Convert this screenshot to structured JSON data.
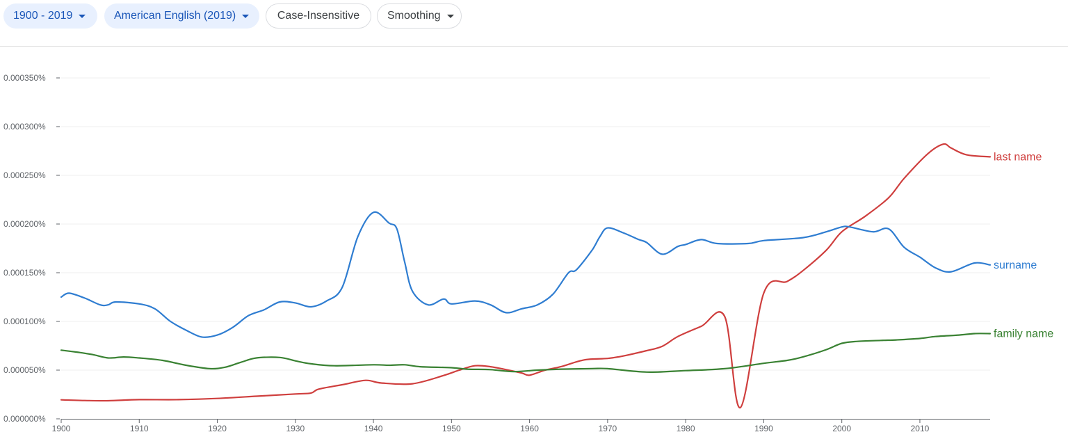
{
  "toolbar": {
    "date_range": "1900 - 2019",
    "corpus": "American English (2019)",
    "case": "Case-Insensitive",
    "smoothing": "Smoothing"
  },
  "chart_data": {
    "type": "line",
    "x_range": [
      1900,
      2019
    ],
    "ylim": [
      0,
      0.00035
    ],
    "y_ticks": [
      0.0,
      5e-05,
      0.0001,
      0.00015,
      0.0002,
      0.00025,
      0.0003,
      0.00035
    ],
    "y_tick_labels": [
      "0.000000%",
      "0.000050%",
      "0.000100%",
      "0.000150%",
      "0.000200%",
      "0.000250%",
      "0.000300%",
      "0.000350%"
    ],
    "x_ticks": [
      1900,
      1910,
      1920,
      1930,
      1940,
      1950,
      1960,
      1970,
      1980,
      1990,
      2000,
      2010
    ],
    "grid": "horizontal",
    "legend": "inline-right",
    "series": [
      {
        "name": "last name",
        "color": "#cf3f3e",
        "points": [
          [
            1900,
            1.95e-05
          ],
          [
            1903,
            1.88e-05
          ],
          [
            1906,
            1.86e-05
          ],
          [
            1910,
            1.97e-05
          ],
          [
            1915,
            1.97e-05
          ],
          [
            1920,
            2.09e-05
          ],
          [
            1925,
            2.32e-05
          ],
          [
            1930,
            2.55e-05
          ],
          [
            1932,
            2.65e-05
          ],
          [
            1933,
            3.05e-05
          ],
          [
            1936,
            3.5e-05
          ],
          [
            1939,
            3.95e-05
          ],
          [
            1941,
            3.68e-05
          ],
          [
            1945,
            3.6e-05
          ],
          [
            1949,
            4.45e-05
          ],
          [
            1951,
            5e-05
          ],
          [
            1953,
            5.45e-05
          ],
          [
            1955,
            5.35e-05
          ],
          [
            1957,
            5.05e-05
          ],
          [
            1959,
            4.7e-05
          ],
          [
            1960,
            4.48e-05
          ],
          [
            1962,
            5e-05
          ],
          [
            1964,
            5.35e-05
          ],
          [
            1967,
            6.05e-05
          ],
          [
            1970,
            6.2e-05
          ],
          [
            1972,
            6.45e-05
          ],
          [
            1975,
            7e-05
          ],
          [
            1977,
            7.45e-05
          ],
          [
            1979,
            8.45e-05
          ],
          [
            1982,
            9.5e-05
          ],
          [
            1985,
            0.000105
          ],
          [
            1987,
            1.15e-05
          ],
          [
            1990,
            0.000129
          ],
          [
            1993,
            0.000141
          ],
          [
            1995,
            0.000152
          ],
          [
            1998,
            0.000173
          ],
          [
            2000,
            0.000192
          ],
          [
            2003,
            0.000208
          ],
          [
            2006,
            0.000227
          ],
          [
            2008,
            0.000247
          ],
          [
            2011,
            0.000272
          ],
          [
            2013,
            0.000282
          ],
          [
            2014,
            0.000278
          ],
          [
            2016,
            0.000271
          ],
          [
            2019,
            0.000269
          ]
        ]
      },
      {
        "name": "surname",
        "color": "#2f7dd1",
        "points": [
          [
            1900,
            0.000125
          ],
          [
            1901,
            0.000129
          ],
          [
            1903,
            0.000124
          ],
          [
            1905,
            0.000117
          ],
          [
            1906,
            0.000117
          ],
          [
            1907,
            0.00012
          ],
          [
            1910,
            0.000118
          ],
          [
            1912,
            0.000113
          ],
          [
            1914,
            0.0001
          ],
          [
            1916,
            9.1e-05
          ],
          [
            1918,
            8.4e-05
          ],
          [
            1920,
            8.6e-05
          ],
          [
            1922,
            9.4e-05
          ],
          [
            1924,
            0.000106
          ],
          [
            1926,
            0.000112
          ],
          [
            1928,
            0.00012
          ],
          [
            1930,
            0.000119
          ],
          [
            1932,
            0.000115
          ],
          [
            1934,
            0.000121
          ],
          [
            1936,
            0.000135
          ],
          [
            1938,
            0.000187
          ],
          [
            1940,
            0.000212
          ],
          [
            1942,
            0.000201
          ],
          [
            1943,
            0.000195
          ],
          [
            1944,
            0.000161
          ],
          [
            1945,
            0.000131
          ],
          [
            1947,
            0.000117
          ],
          [
            1949,
            0.000123
          ],
          [
            1950,
            0.000118
          ],
          [
            1953,
            0.000121
          ],
          [
            1955,
            0.000117
          ],
          [
            1957,
            0.000109
          ],
          [
            1959,
            0.000113
          ],
          [
            1961,
            0.000117
          ],
          [
            1963,
            0.000128
          ],
          [
            1965,
            0.00015
          ],
          [
            1966,
            0.000153
          ],
          [
            1968,
            0.000173
          ],
          [
            1969,
            0.000187
          ],
          [
            1970,
            0.000196
          ],
          [
            1972,
            0.000191
          ],
          [
            1974,
            0.000184
          ],
          [
            1975,
            0.000181
          ],
          [
            1977,
            0.000169
          ],
          [
            1979,
            0.000177
          ],
          [
            1980,
            0.000179
          ],
          [
            1982,
            0.000184
          ],
          [
            1984,
            0.00018
          ],
          [
            1988,
            0.00018
          ],
          [
            1990,
            0.000183
          ],
          [
            1995,
            0.000186
          ],
          [
            1998,
            0.000192
          ],
          [
            2000,
            0.000197
          ],
          [
            2001,
            0.000197
          ],
          [
            2004,
            0.000192
          ],
          [
            2006,
            0.000195
          ],
          [
            2008,
            0.000176
          ],
          [
            2010,
            0.000166
          ],
          [
            2012,
            0.000155
          ],
          [
            2014,
            0.000151
          ],
          [
            2017,
            0.00016
          ],
          [
            2019,
            0.000158
          ]
        ]
      },
      {
        "name": "family name",
        "color": "#3a8233",
        "points": [
          [
            1900,
            7.05e-05
          ],
          [
            1902,
            6.85e-05
          ],
          [
            1904,
            6.6e-05
          ],
          [
            1906,
            6.25e-05
          ],
          [
            1908,
            6.35e-05
          ],
          [
            1910,
            6.25e-05
          ],
          [
            1913,
            6e-05
          ],
          [
            1916,
            5.5e-05
          ],
          [
            1919,
            5.15e-05
          ],
          [
            1921,
            5.3e-05
          ],
          [
            1923,
            5.8e-05
          ],
          [
            1925,
            6.25e-05
          ],
          [
            1928,
            6.3e-05
          ],
          [
            1930,
            5.95e-05
          ],
          [
            1932,
            5.65e-05
          ],
          [
            1935,
            5.45e-05
          ],
          [
            1940,
            5.55e-05
          ],
          [
            1942,
            5.5e-05
          ],
          [
            1944,
            5.55e-05
          ],
          [
            1946,
            5.35e-05
          ],
          [
            1950,
            5.25e-05
          ],
          [
            1952,
            5.1e-05
          ],
          [
            1955,
            5.05e-05
          ],
          [
            1958,
            4.85e-05
          ],
          [
            1961,
            5e-05
          ],
          [
            1964,
            5.1e-05
          ],
          [
            1968,
            5.15e-05
          ],
          [
            1970,
            5.15e-05
          ],
          [
            1975,
            4.8e-05
          ],
          [
            1980,
            4.95e-05
          ],
          [
            1985,
            5.15e-05
          ],
          [
            1990,
            5.7e-05
          ],
          [
            1993,
            6e-05
          ],
          [
            1995,
            6.35e-05
          ],
          [
            1998,
            7.1e-05
          ],
          [
            2000,
            7.75e-05
          ],
          [
            2002,
            7.95e-05
          ],
          [
            2005,
            8.05e-05
          ],
          [
            2007,
            8.1e-05
          ],
          [
            2010,
            8.25e-05
          ],
          [
            2012,
            8.45e-05
          ],
          [
            2015,
            8.6e-05
          ],
          [
            2017,
            8.75e-05
          ],
          [
            2019,
            8.75e-05
          ]
        ]
      }
    ]
  }
}
